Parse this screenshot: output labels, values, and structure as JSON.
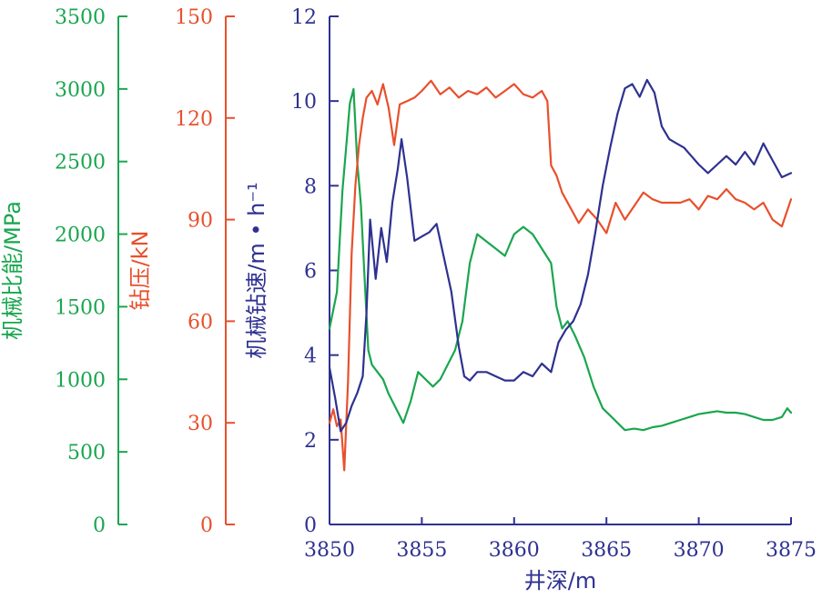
{
  "chart_data": {
    "type": "line",
    "xlabel": "井深/m",
    "x_ticks": [
      3850,
      3855,
      3860,
      3865,
      3870,
      3875
    ],
    "xlim": [
      3850,
      3875
    ],
    "grid": false,
    "axes": [
      {
        "id": "mse",
        "label": "机械比能/MPa",
        "color": "#1aa64e",
        "ylim": [
          0,
          3500
        ],
        "ticks": [
          0,
          500,
          1000,
          1500,
          2000,
          2500,
          3000,
          3500
        ]
      },
      {
        "id": "wob",
        "label": "钻压/kN",
        "color": "#e8502c",
        "ylim": [
          0,
          150
        ],
        "ticks": [
          0,
          30,
          60,
          90,
          120,
          150
        ]
      },
      {
        "id": "rop",
        "label": "机械钻速/m • h⁻¹",
        "color": "#2e3190",
        "ylim": [
          0,
          12
        ],
        "ticks": [
          0,
          2,
          4,
          6,
          8,
          10,
          12
        ]
      }
    ],
    "series": [
      {
        "axis": "mse",
        "color": "#1aa64e",
        "x": [
          3850,
          3850.4,
          3850.7,
          3850.9,
          3851.1,
          3851.3,
          3851.5,
          3851.7,
          3851.9,
          3852.1,
          3852.3,
          3852.6,
          3852.9,
          3853.2,
          3853.6,
          3854,
          3854.4,
          3854.8,
          3855.2,
          3855.6,
          3856,
          3856.4,
          3856.8,
          3857.2,
          3857.6,
          3858,
          3858.5,
          3859,
          3859.5,
          3860,
          3860.5,
          3861,
          3861.5,
          3862,
          3862.3,
          3862.6,
          3862.9,
          3863.3,
          3863.8,
          3864.3,
          3864.8,
          3865.2,
          3865.6,
          3866,
          3866.5,
          3867,
          3867.5,
          3868,
          3868.5,
          3869,
          3869.5,
          3870,
          3870.5,
          3871,
          3871.5,
          3872,
          3872.5,
          3873,
          3873.5,
          3874,
          3874.5,
          3874.8,
          3875
        ],
        "y": [
          1350,
          1600,
          2300,
          2600,
          2900,
          3000,
          2500,
          2200,
          1700,
          1200,
          1100,
          1050,
          1000,
          900,
          800,
          700,
          850,
          1050,
          1000,
          950,
          1000,
          1100,
          1200,
          1400,
          1800,
          2000,
          1950,
          1900,
          1850,
          2000,
          2050,
          2000,
          1900,
          1800,
          1500,
          1350,
          1400,
          1300,
          1150,
          950,
          800,
          750,
          700,
          650,
          660,
          650,
          670,
          680,
          700,
          720,
          740,
          760,
          770,
          780,
          770,
          770,
          760,
          740,
          720,
          720,
          740,
          800,
          770
        ]
      },
      {
        "axis": "wob",
        "color": "#e8502c",
        "x": [
          3850,
          3850.2,
          3850.4,
          3850.6,
          3850.8,
          3851,
          3851.2,
          3851.4,
          3851.6,
          3851.8,
          3852,
          3852.3,
          3852.6,
          3852.9,
          3853.2,
          3853.5,
          3853.8,
          3854.2,
          3854.6,
          3855,
          3855.5,
          3856,
          3856.5,
          3857,
          3857.5,
          3858,
          3858.5,
          3859,
          3859.5,
          3860,
          3860.5,
          3861,
          3861.5,
          3861.8,
          3862,
          3862.3,
          3862.6,
          3863,
          3863.5,
          3864,
          3864.5,
          3865,
          3865.5,
          3866,
          3866.5,
          3867,
          3867.5,
          3868,
          3868.5,
          3869,
          3869.5,
          3870,
          3870.5,
          3871,
          3871.5,
          3872,
          3872.5,
          3873,
          3873.5,
          3874,
          3874.5,
          3875
        ],
        "y": [
          30,
          34,
          29,
          31,
          16,
          42,
          80,
          100,
          112,
          120,
          126,
          128,
          124,
          130,
          123,
          112,
          124,
          125,
          126,
          128,
          131,
          127,
          129,
          126,
          128,
          127,
          129,
          126,
          128,
          130,
          127,
          126,
          128,
          125,
          106,
          103,
          98,
          94,
          89,
          93,
          90,
          86,
          95,
          90,
          94,
          98,
          96,
          95,
          95,
          95,
          96,
          93,
          97,
          96,
          99,
          96,
          95,
          93,
          95,
          90,
          88,
          96
        ]
      },
      {
        "axis": "rop",
        "color": "#2e3190",
        "x": [
          3850,
          3850.3,
          3850.6,
          3850.9,
          3851.2,
          3851.5,
          3851.8,
          3852,
          3852.2,
          3852.5,
          3852.8,
          3853.1,
          3853.4,
          3853.7,
          3853.9,
          3854.2,
          3854.6,
          3855,
          3855.4,
          3855.8,
          3856.2,
          3856.6,
          3857,
          3857.3,
          3857.6,
          3858,
          3858.5,
          3859,
          3859.5,
          3860,
          3860.5,
          3861,
          3861.5,
          3862,
          3862.4,
          3862.8,
          3863.2,
          3863.6,
          3864,
          3864.4,
          3864.8,
          3865.2,
          3865.6,
          3866,
          3866.4,
          3866.8,
          3867.2,
          3867.6,
          3868,
          3868.4,
          3868.8,
          3869.2,
          3869.6,
          3870,
          3870.5,
          3871,
          3871.5,
          3872,
          3872.5,
          3873,
          3873.5,
          3874,
          3874.5,
          3875
        ],
        "y": [
          3.7,
          3,
          2.2,
          2.4,
          2.8,
          3.1,
          3.5,
          5,
          7.2,
          5.8,
          7,
          6.2,
          7.6,
          8.4,
          9.1,
          8.2,
          6.7,
          6.8,
          6.9,
          7.1,
          6.3,
          5.5,
          4.2,
          3.5,
          3.4,
          3.6,
          3.6,
          3.5,
          3.4,
          3.4,
          3.6,
          3.5,
          3.8,
          3.6,
          4.3,
          4.6,
          4.8,
          5.2,
          5.9,
          6.9,
          8,
          8.9,
          9.7,
          10.3,
          10.4,
          10.1,
          10.5,
          10.2,
          9.4,
          9.1,
          9,
          8.9,
          8.7,
          8.5,
          8.3,
          8.5,
          8.7,
          8.5,
          8.8,
          8.5,
          9,
          8.6,
          8.2,
          8.3
        ]
      }
    ]
  }
}
